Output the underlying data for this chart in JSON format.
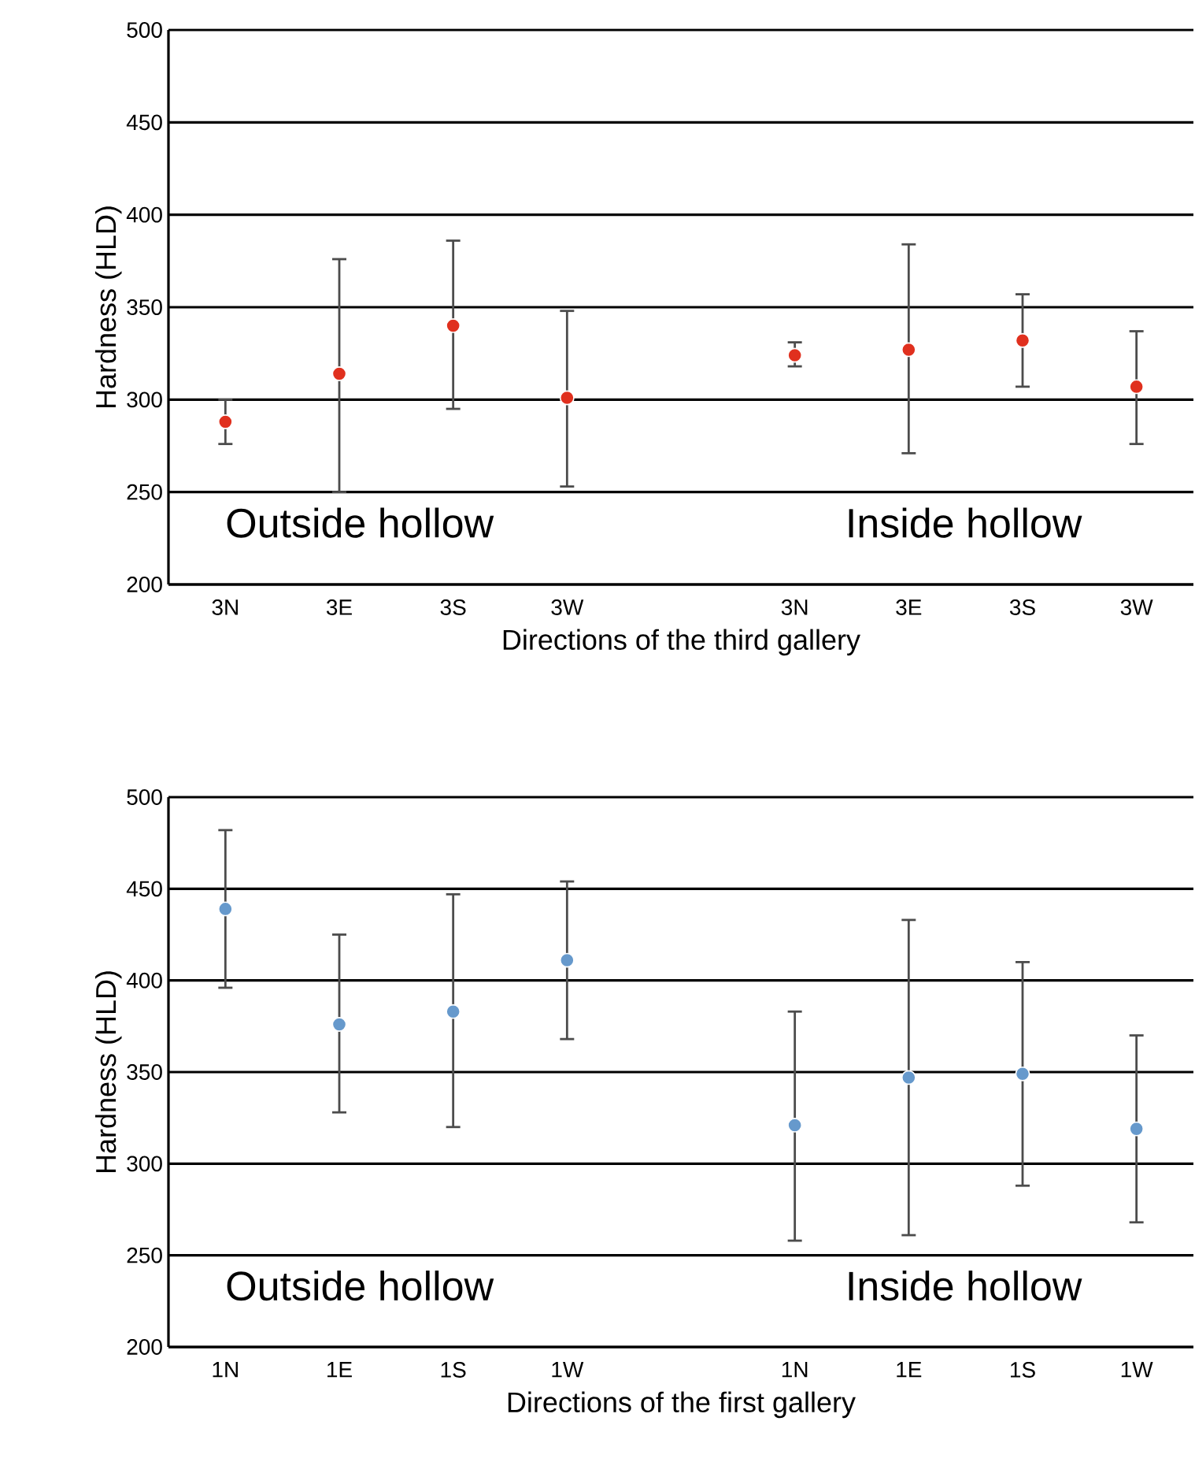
{
  "chart_data": [
    {
      "type": "scatter",
      "xlabel": "Directions of the third gallery",
      "ylabel": "Hardness (HLD)",
      "categories": [
        "3N",
        "3E",
        "3S",
        "3W",
        null,
        "3N",
        "3E",
        "3S",
        "3W"
      ],
      "values": [
        288,
        314,
        340,
        301,
        null,
        324,
        327,
        332,
        307
      ],
      "errors": [
        [
          276,
          300
        ],
        [
          250,
          376
        ],
        [
          295,
          386
        ],
        [
          253,
          348
        ],
        null,
        [
          318,
          331
        ],
        [
          271,
          384
        ],
        [
          307,
          357
        ],
        [
          276,
          337
        ]
      ],
      "color": "#e0301e",
      "ylim": [
        200,
        500
      ],
      "yticks": [
        200,
        250,
        300,
        350,
        400,
        450,
        500
      ],
      "grid": "y",
      "marker": "circle",
      "annotations": [
        "Outside hollow",
        "Inside hollow"
      ]
    },
    {
      "type": "scatter",
      "xlabel": "Directions of the first gallery",
      "ylabel": "Hardness (HLD)",
      "categories": [
        "1N",
        "1E",
        "1S",
        "1W",
        null,
        "1N",
        "1E",
        "1S",
        "1W"
      ],
      "values": [
        439,
        376,
        383,
        411,
        null,
        321,
        347,
        349,
        319
      ],
      "errors": [
        [
          396,
          482
        ],
        [
          328,
          425
        ],
        [
          320,
          447
        ],
        [
          368,
          454
        ],
        null,
        [
          258,
          383
        ],
        [
          261,
          433
        ],
        [
          288,
          410
        ],
        [
          268,
          370
        ]
      ],
      "color": "#6699cc",
      "ylim": [
        200,
        500
      ],
      "yticks": [
        200,
        250,
        300,
        350,
        400,
        450,
        500
      ],
      "grid": "y",
      "marker": "circle",
      "annotations": [
        "Outside hollow",
        "Inside hollow"
      ]
    }
  ]
}
